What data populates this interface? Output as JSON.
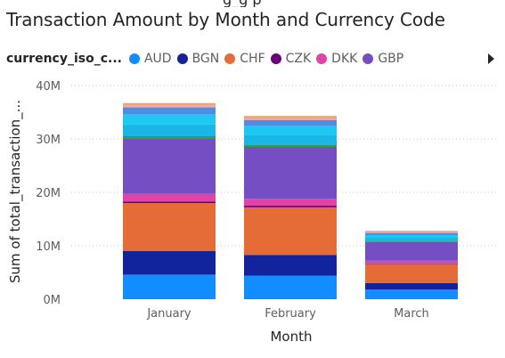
{
  "header": {
    "clipped_text": "g_g  p",
    "title": "Transaction Amount by Month and Currency Code"
  },
  "legend": {
    "title": "currency_iso_c...",
    "more_icon": "chevron-right-icon"
  },
  "chart_data": {
    "type": "bar",
    "stacked": true,
    "title": "Transaction Amount by Month and Currency Code",
    "xlabel": "Month",
    "ylabel": "Sum of total_transaction_...",
    "ylim": [
      0,
      40000000
    ],
    "yticks": [
      0,
      10000000,
      20000000,
      30000000,
      40000000
    ],
    "ytick_labels": [
      "0M",
      "10M",
      "20M",
      "30M",
      "40M"
    ],
    "categories": [
      "January",
      "February",
      "March"
    ],
    "legend_position": "top",
    "grid": "dotted horizontal",
    "series": [
      {
        "name": "AUD",
        "color": "#118DFF",
        "values": [
          4600000,
          4400000,
          1800000
        ]
      },
      {
        "name": "BGN",
        "color": "#12239E",
        "values": [
          4400000,
          3900000,
          1200000
        ]
      },
      {
        "name": "CHF",
        "color": "#E66C37",
        "values": [
          9000000,
          8900000,
          3600000
        ]
      },
      {
        "name": "CZK",
        "color": "#6B007B",
        "values": [
          300000,
          300000,
          100000
        ]
      },
      {
        "name": "DKK",
        "color": "#E044A7",
        "values": [
          1400000,
          1300000,
          500000
        ]
      },
      {
        "name": "GBP",
        "color": "#744EC2",
        "values": [
          10400000,
          9700000,
          3500000
        ]
      },
      {
        "color": "#3A9B41",
        "values": [
          400000,
          400000,
          200000
        ]
      },
      {
        "color": "#1AB7E6",
        "values": [
          2200000,
          1900000,
          600000
        ]
      },
      {
        "color": "#1FC8F0",
        "values": [
          1900000,
          1700000,
          500000
        ]
      },
      {
        "color": "#4A90E2",
        "values": [
          1300000,
          1000000,
          400000
        ]
      },
      {
        "color": "#E3A5C8",
        "values": [
          400000,
          400000,
          200000
        ]
      },
      {
        "color": "#F0A463",
        "values": [
          400000,
          400000,
          200000
        ]
      }
    ]
  }
}
